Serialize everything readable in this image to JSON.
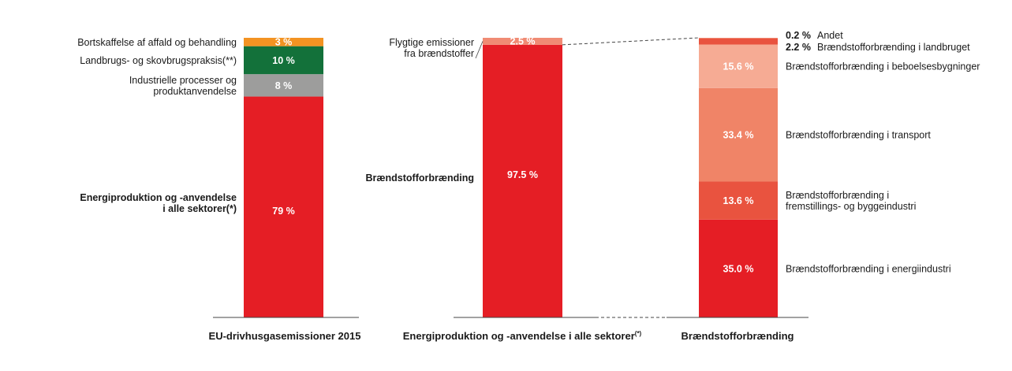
{
  "chart_data": [
    {
      "type": "bar",
      "stacked": true,
      "unit": "%",
      "xlabel": "EU-drivhusgasemissioner 2015",
      "segments": [
        {
          "name": "Energiproduktion og -anvendelse i alle sektorer(*)",
          "name_lines": [
            "Energiproduktion og -anvendelse",
            "i alle sektorer(*)"
          ],
          "value": 79,
          "label": "79 %",
          "color": "#e51e25",
          "label_bold": true
        },
        {
          "name": "Industrielle processer og produktanvendelse",
          "name_lines": [
            "Industrielle processer og",
            "produktanvendelse"
          ],
          "value": 8,
          "label": "8 %",
          "color": "#9d9d9c",
          "label_bold": false
        },
        {
          "name": "Landbrugs- og skovbrugspraksis(**)",
          "name_lines": [
            "Landbrugs- og skovbrugspraksis(**)"
          ],
          "value": 10,
          "label": "10 %",
          "color": "#13713a",
          "label_bold": false
        },
        {
          "name": "Bortskaffelse af affald og behandling",
          "name_lines": [
            "Bortskaffelse af affald og behandling"
          ],
          "value": 3,
          "label": "3 %",
          "color": "#f39322",
          "label_bold": false
        }
      ]
    },
    {
      "type": "bar",
      "stacked": true,
      "unit": "%",
      "xlabel": "Energiproduktion og -anvendelse i alle sektorer",
      "xlabel_sup": "(*)",
      "segments": [
        {
          "name": "Brændstofforbrænding",
          "name_lines": [
            "Brændstofforbrænding"
          ],
          "value": 97.5,
          "label": "97.5 %",
          "color": "#e51e25",
          "label_bold": true
        },
        {
          "name": "Flygtige emissioner fra brændstoffer",
          "name_lines": [
            "Flygtige emissioner",
            "fra brændstoffer"
          ],
          "value": 2.5,
          "label": "2.5 %",
          "color": "#f08b74",
          "label_bold": false
        }
      ]
    },
    {
      "type": "bar",
      "stacked": true,
      "unit": "%",
      "xlabel": "Brændstofforbrænding",
      "segments": [
        {
          "name": "Brændstofforbrænding i energiindustri",
          "name_lines": [
            "Brændstofforbrænding i energiindustri"
          ],
          "value": 35.0,
          "label": "35.0 %",
          "color": "#e51e25"
        },
        {
          "name": "Brændstofforbrænding i fremstillings- og byggeindustri",
          "name_lines": [
            "Brændstofforbrænding i",
            "fremstillings- og byggeindustri"
          ],
          "value": 13.6,
          "label": "13.6 %",
          "color": "#e9533f"
        },
        {
          "name": "Brændstofforbrænding i transport",
          "name_lines": [
            "Brændstofforbrænding i transport"
          ],
          "value": 33.4,
          "label": "33.4 %",
          "color": "#f08467"
        },
        {
          "name": "Brændstofforbrænding i beboelsesbygninger",
          "name_lines": [
            "Brændstofforbrænding i beboelsesbygninger"
          ],
          "value": 15.6,
          "label": "15.6 %",
          "color": "#f6ab94"
        },
        {
          "name": "Brændstofforbrænding i landbruget",
          "name_lines": [
            "Brændstofforbrænding i landbruget"
          ],
          "value": 2.2,
          "label": "2.2 %",
          "color": "#e9533f"
        },
        {
          "name": "Andet",
          "name_lines": [
            "Andet"
          ],
          "value": 0.2,
          "label": "0.2 %",
          "color": "#f08467"
        }
      ]
    }
  ]
}
